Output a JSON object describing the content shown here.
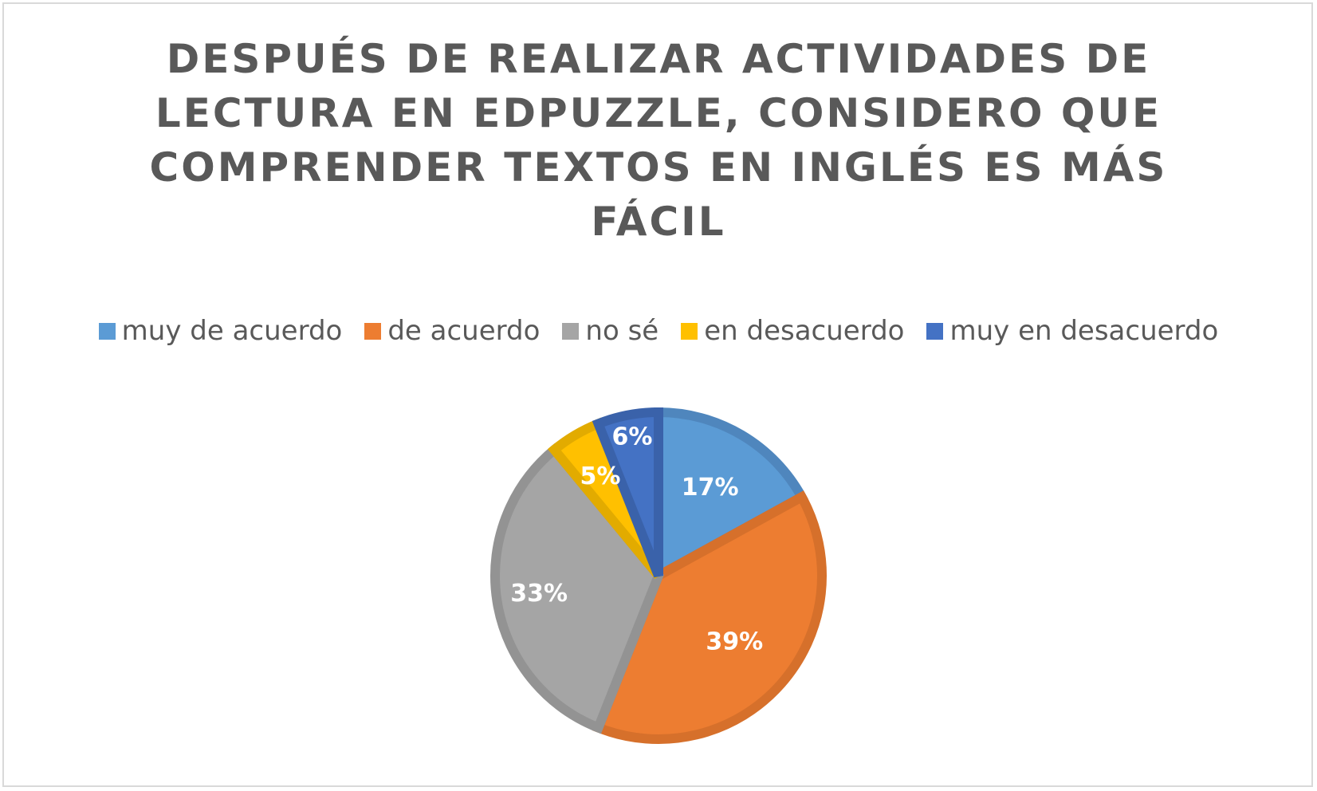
{
  "chart_data": {
    "type": "pie",
    "title": "DESPUÉS DE REALIZAR ACTIVIDADES DE LECTURA EN EDPUZZLE, CONSIDERO QUE COMPRENDER TEXTOS EN INGLÉS ES MÁS FÁCIL",
    "categories": [
      "muy de acuerdo",
      "de acuerdo",
      "no sé",
      "en desacuerdo",
      "muy en desacuerdo"
    ],
    "values": [
      17,
      39,
      33,
      5,
      6
    ],
    "data_labels": [
      "17%",
      "39%",
      "33%",
      "5%",
      "6%"
    ],
    "colors": [
      "#5b9bd5",
      "#ed7d31",
      "#a5a5a5",
      "#ffc000",
      "#4472c4"
    ],
    "edge_colors": [
      "#4f86bd",
      "#d6702b",
      "#939393",
      "#e2ab00",
      "#3a62aa"
    ],
    "legend_position": "top"
  }
}
